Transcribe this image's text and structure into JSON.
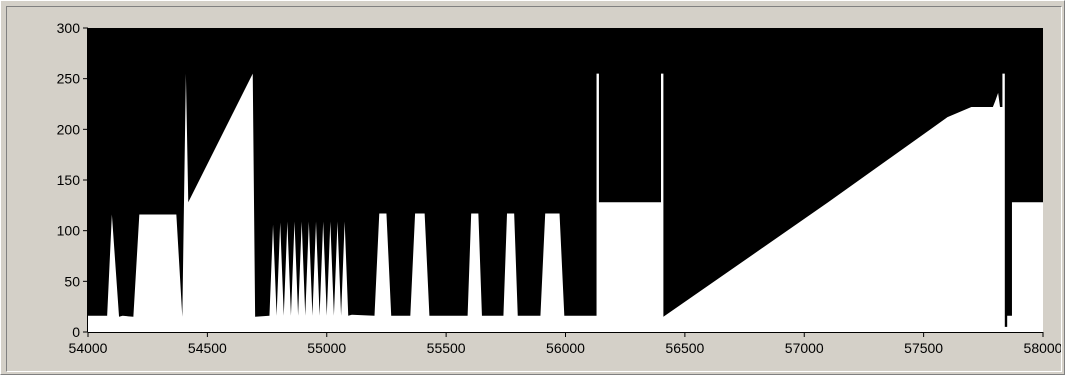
{
  "chart_data": {
    "type": "line",
    "title": "",
    "xlabel": "",
    "ylabel": "",
    "xlim": [
      54000,
      58000
    ],
    "ylim": [
      0,
      300
    ],
    "x_ticks": [
      {
        "value": 54000,
        "label": "54000"
      },
      {
        "value": 54500,
        "label": "54500"
      },
      {
        "value": 55000,
        "label": "55000"
      },
      {
        "value": 55500,
        "label": "55500"
      },
      {
        "value": 56000,
        "label": "56000"
      },
      {
        "value": 56500,
        "label": "56500"
      },
      {
        "value": 57000,
        "label": "57000"
      },
      {
        "value": 57500,
        "label": "57500"
      },
      {
        "value": 58000,
        "label": "58000"
      }
    ],
    "y_ticks": [
      {
        "value": 0,
        "label": "0"
      },
      {
        "value": 50,
        "label": "50"
      },
      {
        "value": 100,
        "label": "100"
      },
      {
        "value": 150,
        "label": "150"
      },
      {
        "value": 200,
        "label": "200"
      },
      {
        "value": 250,
        "label": "250"
      },
      {
        "value": 300,
        "label": "300"
      }
    ],
    "grid": false,
    "plot_background": "#000000",
    "fill_color": "#ffffff",
    "frame_color": "#d4d0c8",
    "series": [
      {
        "style": "filled-area",
        "x": [
          54000,
          54080,
          54080,
          54100,
          54100,
          54130,
          54130,
          54145,
          54145,
          54190,
          54190,
          54215,
          54215,
          54370,
          54370,
          54395,
          54395,
          54410,
          54410,
          54420,
          54420,
          54690,
          54690,
          54700,
          54700,
          54760,
          54775,
          54790,
          54805,
          54820,
          54835,
          54850,
          54865,
          54880,
          54895,
          54910,
          54925,
          54940,
          54955,
          54970,
          54985,
          55000,
          55015,
          55030,
          55045,
          55060,
          55075,
          55090,
          55105,
          55200,
          55220,
          55250,
          55270,
          55350,
          55370,
          55410,
          55430,
          55590,
          55605,
          55635,
          55650,
          55740,
          55755,
          55785,
          55800,
          55895,
          55915,
          55975,
          55995,
          56000,
          56130,
          56130,
          56140,
          56140,
          56400,
          56400,
          56410,
          56410,
          57100,
          57600,
          57700,
          57790,
          57800,
          57812,
          57820,
          57830,
          57830,
          57840,
          57840,
          57850,
          57850,
          57870,
          57870,
          58000
        ],
        "y": [
          16,
          16,
          15,
          116,
          116,
          15,
          15,
          16,
          16,
          15,
          15,
          116,
          116,
          116,
          116,
          15,
          15,
          255,
          255,
          128,
          128,
          255,
          255,
          15,
          15,
          16,
          106,
          16,
          108,
          16,
          109,
          16,
          109,
          16,
          109,
          16,
          109,
          16,
          109,
          16,
          109,
          16,
          109,
          16,
          109,
          16,
          109,
          16,
          17,
          16,
          117,
          117,
          16,
          16,
          117,
          117,
          16,
          16,
          117,
          117,
          16,
          16,
          117,
          117,
          16,
          16,
          117,
          117,
          16,
          16,
          16,
          255,
          255,
          128,
          128,
          255,
          255,
          15,
          128,
          212,
          222,
          222,
          228,
          236,
          222,
          222,
          255,
          255,
          5,
          5,
          16,
          16,
          128,
          128
        ]
      }
    ]
  }
}
